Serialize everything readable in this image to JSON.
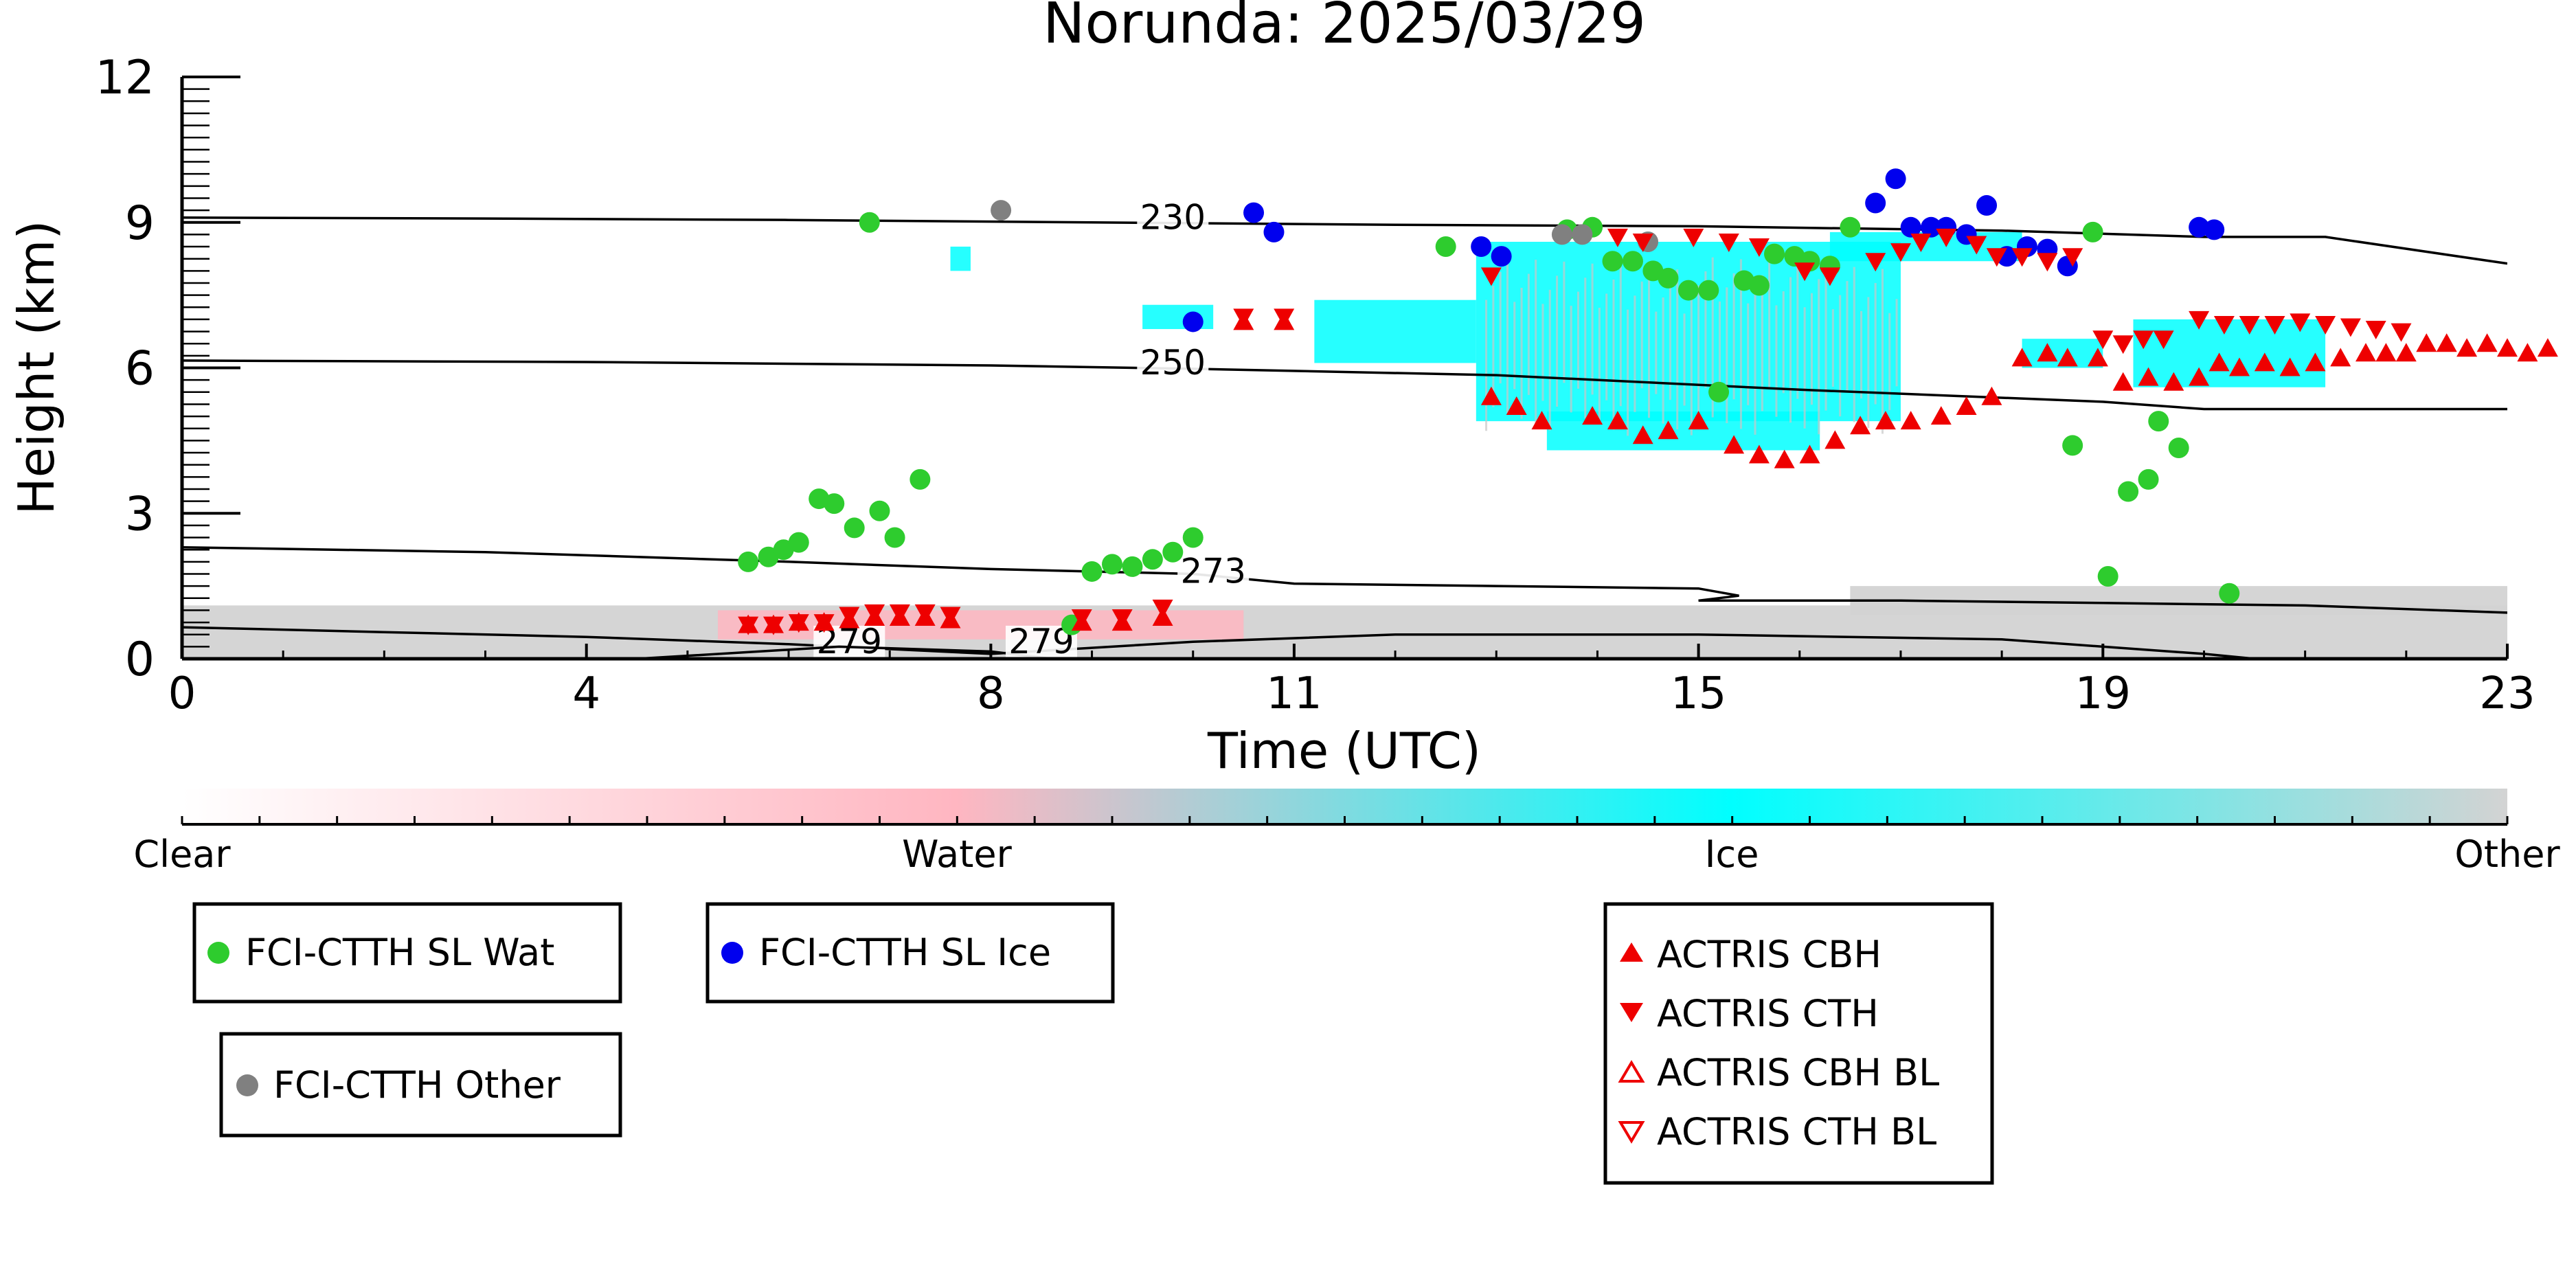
{
  "chart_data": {
    "type": "scatter",
    "title": "Norunda: 2025/03/29",
    "xlabel": "Time (UTC)",
    "ylabel": "Height (km)",
    "xlim": [
      0,
      23
    ],
    "ylim": [
      0,
      12
    ],
    "x_ticks": [
      0,
      4,
      8,
      11,
      15,
      19,
      23
    ],
    "y_ticks": [
      0,
      3,
      6,
      9,
      12
    ],
    "grid": false,
    "temperature_contours": [
      {
        "label": "230",
        "label_at": [
          9.8,
          8.95
        ],
        "points": [
          [
            0,
            9.1
          ],
          [
            3,
            9.08
          ],
          [
            6,
            9.05
          ],
          [
            9,
            9.0
          ],
          [
            12,
            8.95
          ],
          [
            15,
            8.92
          ],
          [
            18,
            8.83
          ],
          [
            20,
            8.7
          ],
          [
            21.2,
            8.7
          ],
          [
            23,
            8.15
          ]
        ]
      },
      {
        "label": "250",
        "label_at": [
          9.8,
          5.95
        ],
        "points": [
          [
            0,
            6.15
          ],
          [
            4,
            6.12
          ],
          [
            8,
            6.05
          ],
          [
            10,
            5.98
          ],
          [
            13,
            5.85
          ],
          [
            16,
            5.55
          ],
          [
            19,
            5.3
          ],
          [
            20,
            5.15
          ],
          [
            23,
            5.15
          ]
        ]
      },
      {
        "label": "273",
        "label_at": [
          10.2,
          1.65
        ],
        "points": [
          [
            0,
            2.3
          ],
          [
            3,
            2.2
          ],
          [
            6,
            2.0
          ],
          [
            8,
            1.85
          ],
          [
            10,
            1.75
          ],
          [
            11,
            1.55
          ],
          [
            13,
            1.5
          ],
          [
            15,
            1.45
          ],
          [
            15.4,
            1.3
          ],
          [
            15,
            1.2
          ],
          [
            17,
            1.2
          ],
          [
            19,
            1.15
          ],
          [
            21,
            1.1
          ],
          [
            23,
            0.95
          ]
        ]
      },
      {
        "label": "279",
        "label_at": [
          6.6,
          0.2
        ],
        "points": [
          [
            0,
            0.65
          ],
          [
            2,
            0.55
          ],
          [
            4,
            0.45
          ],
          [
            6,
            0.3
          ],
          [
            7,
            0.2
          ],
          [
            8,
            0.1
          ],
          [
            10,
            0.35
          ],
          [
            12,
            0.5
          ],
          [
            15,
            0.5
          ],
          [
            18,
            0.4
          ],
          [
            20,
            0.1
          ],
          [
            20.5,
            0
          ]
        ]
      },
      {
        "label": "279",
        "label_at": [
          8.5,
          0.2
        ],
        "points": [
          [
            4.5,
            0
          ],
          [
            6.5,
            0.25
          ],
          [
            8,
            0.15
          ],
          [
            8.6,
            0
          ]
        ]
      }
    ],
    "colorbar": {
      "labels": [
        "Clear",
        "Water",
        "Ice",
        "Other"
      ],
      "colors": [
        "#ffffff",
        "#ffb6c1",
        "#00ffff",
        "#d3d3d3"
      ]
    },
    "series": [
      {
        "name": "FCI-CTTH SL Wat",
        "marker": "circle",
        "color": "#2ecc2e",
        "points": [
          [
            5.6,
            2.0
          ],
          [
            5.8,
            2.1
          ],
          [
            5.95,
            2.25
          ],
          [
            6.1,
            2.4
          ],
          [
            6.3,
            3.3
          ],
          [
            6.45,
            3.2
          ],
          [
            6.65,
            2.7
          ],
          [
            6.9,
            3.05
          ],
          [
            7.05,
            2.5
          ],
          [
            7.3,
            3.7
          ],
          [
            6.8,
            9.0
          ],
          [
            8.8,
            0.7
          ],
          [
            9.0,
            1.8
          ],
          [
            9.2,
            1.95
          ],
          [
            9.4,
            1.9
          ],
          [
            9.6,
            2.05
          ],
          [
            9.8,
            2.2
          ],
          [
            10.0,
            2.5
          ],
          [
            12.5,
            8.5
          ],
          [
            13.7,
            8.85
          ],
          [
            13.95,
            8.9
          ],
          [
            14.15,
            8.2
          ],
          [
            14.35,
            8.2
          ],
          [
            14.55,
            8.0
          ],
          [
            14.7,
            7.85
          ],
          [
            14.9,
            7.6
          ],
          [
            15.1,
            7.6
          ],
          [
            15.2,
            5.5
          ],
          [
            15.45,
            7.8
          ],
          [
            15.6,
            7.7
          ],
          [
            15.75,
            8.35
          ],
          [
            15.95,
            8.3
          ],
          [
            16.1,
            8.2
          ],
          [
            16.3,
            8.1
          ],
          [
            16.5,
            8.9
          ],
          [
            18.7,
            4.4
          ],
          [
            18.9,
            8.8
          ],
          [
            19.05,
            1.7
          ],
          [
            19.25,
            3.45
          ],
          [
            19.45,
            3.7
          ],
          [
            19.55,
            4.9
          ],
          [
            19.75,
            4.35
          ],
          [
            20.25,
            1.35
          ]
        ]
      },
      {
        "name": "FCI-CTTH SL Ice",
        "marker": "circle",
        "color": "#0000ee",
        "points": [
          [
            10.0,
            6.95
          ],
          [
            10.6,
            9.2
          ],
          [
            10.8,
            8.8
          ],
          [
            12.85,
            8.5
          ],
          [
            13.05,
            8.3
          ],
          [
            16.75,
            9.4
          ],
          [
            16.95,
            9.9
          ],
          [
            17.1,
            8.9
          ],
          [
            17.3,
            8.9
          ],
          [
            17.45,
            8.9
          ],
          [
            17.65,
            8.75
          ],
          [
            17.85,
            9.35
          ],
          [
            18.05,
            8.3
          ],
          [
            18.25,
            8.5
          ],
          [
            18.45,
            8.45
          ],
          [
            18.65,
            8.1
          ],
          [
            19.95,
            8.9
          ],
          [
            20.1,
            8.85
          ]
        ]
      },
      {
        "name": "FCI-CTTH Other",
        "marker": "circle",
        "color": "#808080",
        "points": [
          [
            8.1,
            9.25
          ],
          [
            13.65,
            8.75
          ],
          [
            13.85,
            8.75
          ],
          [
            14.5,
            8.6
          ]
        ]
      },
      {
        "name": "ACTRIS CBH",
        "marker": "triangle-up",
        "color": "#ee0000",
        "filled": true,
        "points": [
          [
            5.6,
            0.7
          ],
          [
            5.85,
            0.7
          ],
          [
            6.1,
            0.75
          ],
          [
            6.35,
            0.75
          ],
          [
            6.6,
            0.8
          ],
          [
            6.85,
            0.85
          ],
          [
            7.1,
            0.85
          ],
          [
            7.35,
            0.85
          ],
          [
            7.6,
            0.8
          ],
          [
            8.9,
            0.75
          ],
          [
            9.3,
            0.75
          ],
          [
            9.7,
            0.85
          ],
          [
            10.5,
            6.95
          ],
          [
            10.9,
            6.95
          ],
          [
            12.95,
            5.4
          ],
          [
            13.2,
            5.2
          ],
          [
            13.45,
            4.9
          ],
          [
            13.95,
            5.0
          ],
          [
            14.2,
            4.9
          ],
          [
            14.45,
            4.6
          ],
          [
            14.7,
            4.7
          ],
          [
            15.0,
            4.9
          ],
          [
            15.35,
            4.4
          ],
          [
            15.6,
            4.2
          ],
          [
            15.85,
            4.1
          ],
          [
            16.1,
            4.2
          ],
          [
            16.35,
            4.5
          ],
          [
            16.6,
            4.8
          ],
          [
            16.85,
            4.9
          ],
          [
            17.1,
            4.9
          ],
          [
            17.4,
            5.0
          ],
          [
            17.65,
            5.2
          ],
          [
            17.9,
            5.4
          ],
          [
            18.2,
            6.2
          ],
          [
            18.45,
            6.3
          ],
          [
            18.65,
            6.2
          ],
          [
            18.95,
            6.2
          ],
          [
            19.2,
            5.7
          ],
          [
            19.45,
            5.8
          ],
          [
            19.7,
            5.7
          ],
          [
            19.95,
            5.8
          ],
          [
            20.15,
            6.1
          ],
          [
            20.35,
            6.0
          ],
          [
            20.6,
            6.1
          ],
          [
            20.85,
            6.0
          ],
          [
            21.1,
            6.1
          ],
          [
            21.35,
            6.2
          ],
          [
            21.6,
            6.3
          ],
          [
            21.8,
            6.3
          ],
          [
            22.0,
            6.3
          ],
          [
            22.2,
            6.5
          ],
          [
            22.4,
            6.5
          ],
          [
            22.6,
            6.4
          ],
          [
            22.8,
            6.5
          ],
          [
            23.0,
            6.4
          ],
          [
            23.2,
            6.3
          ],
          [
            23.4,
            6.4
          ]
        ]
      },
      {
        "name": "ACTRIS CTH",
        "marker": "triangle-down",
        "color": "#ee0000",
        "filled": true,
        "points": [
          [
            5.6,
            0.7
          ],
          [
            5.85,
            0.7
          ],
          [
            6.1,
            0.75
          ],
          [
            6.35,
            0.75
          ],
          [
            6.6,
            0.9
          ],
          [
            6.85,
            0.95
          ],
          [
            7.1,
            0.95
          ],
          [
            7.35,
            0.95
          ],
          [
            7.6,
            0.9
          ],
          [
            8.9,
            0.85
          ],
          [
            9.3,
            0.85
          ],
          [
            9.7,
            1.05
          ],
          [
            10.5,
            7.05
          ],
          [
            10.9,
            7.05
          ],
          [
            12.95,
            7.9
          ],
          [
            14.2,
            8.7
          ],
          [
            14.45,
            8.6
          ],
          [
            14.95,
            8.7
          ],
          [
            15.3,
            8.6
          ],
          [
            15.6,
            8.5
          ],
          [
            16.05,
            8.0
          ],
          [
            16.3,
            7.9
          ],
          [
            16.75,
            8.2
          ],
          [
            17.0,
            8.4
          ],
          [
            17.2,
            8.6
          ],
          [
            17.45,
            8.7
          ],
          [
            17.75,
            8.55
          ],
          [
            17.95,
            8.3
          ],
          [
            18.2,
            8.3
          ],
          [
            18.45,
            8.2
          ],
          [
            18.7,
            8.3
          ],
          [
            19.0,
            6.6
          ],
          [
            19.2,
            6.5
          ],
          [
            19.4,
            6.6
          ],
          [
            19.6,
            6.6
          ],
          [
            19.95,
            7.0
          ],
          [
            20.2,
            6.9
          ],
          [
            20.45,
            6.9
          ],
          [
            20.7,
            6.9
          ],
          [
            20.95,
            6.95
          ],
          [
            21.2,
            6.9
          ],
          [
            21.45,
            6.85
          ],
          [
            21.7,
            6.8
          ],
          [
            21.95,
            6.75
          ]
        ]
      },
      {
        "name": "ACTRIS CBH BL",
        "marker": "triangle-up",
        "color": "#ee0000",
        "filled": false,
        "points": []
      },
      {
        "name": "ACTRIS CTH BL",
        "marker": "triangle-down",
        "color": "#ee0000",
        "filled": false,
        "points": []
      }
    ],
    "legend_boxes": [
      [
        "FCI-CTTH SL Wat"
      ],
      [
        "FCI-CTTH SL Ice"
      ],
      [
        "FCI-CTTH Other"
      ],
      [
        "ACTRIS CBH",
        "ACTRIS CTH",
        "ACTRIS CBH BL",
        "ACTRIS CTH BL"
      ]
    ]
  }
}
